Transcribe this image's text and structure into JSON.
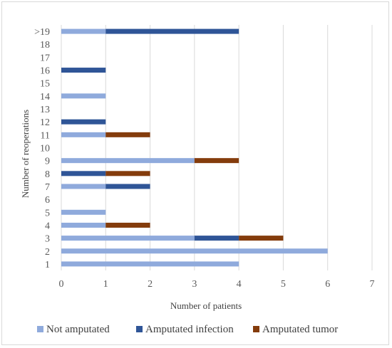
{
  "chart_data": {
    "type": "bar",
    "orientation": "horizontal",
    "stacked": true,
    "categories": [
      "1",
      "2",
      "3",
      "4",
      "5",
      "6",
      "7",
      "8",
      "9",
      "10",
      "11",
      "12",
      "13",
      "14",
      "15",
      "16",
      "17",
      "18",
      ">19"
    ],
    "series": [
      {
        "name": "Not amputated",
        "color": "#8faadc",
        "values": [
          4,
          6,
          3,
          1,
          1,
          0,
          1,
          0,
          3,
          0,
          1,
          0,
          0,
          1,
          0,
          0,
          0,
          0,
          1
        ]
      },
      {
        "name": "Amputated infection",
        "color": "#2f5597",
        "values": [
          0,
          0,
          1,
          0,
          0,
          0,
          1,
          1,
          0,
          0,
          0,
          1,
          0,
          0,
          0,
          1,
          0,
          0,
          3
        ]
      },
      {
        "name": "Amputated tumor",
        "color": "#843c0c",
        "values": [
          0,
          0,
          1,
          1,
          0,
          0,
          0,
          1,
          1,
          0,
          1,
          0,
          0,
          0,
          0,
          0,
          0,
          0,
          0
        ]
      }
    ],
    "xlabel": "Number of patients",
    "ylabel": "Number of reoperations",
    "xlim": [
      0,
      7
    ],
    "xticks": [
      0,
      1,
      2,
      3,
      4,
      5,
      6,
      7
    ],
    "grid": "vertical",
    "legend": "bottom"
  }
}
